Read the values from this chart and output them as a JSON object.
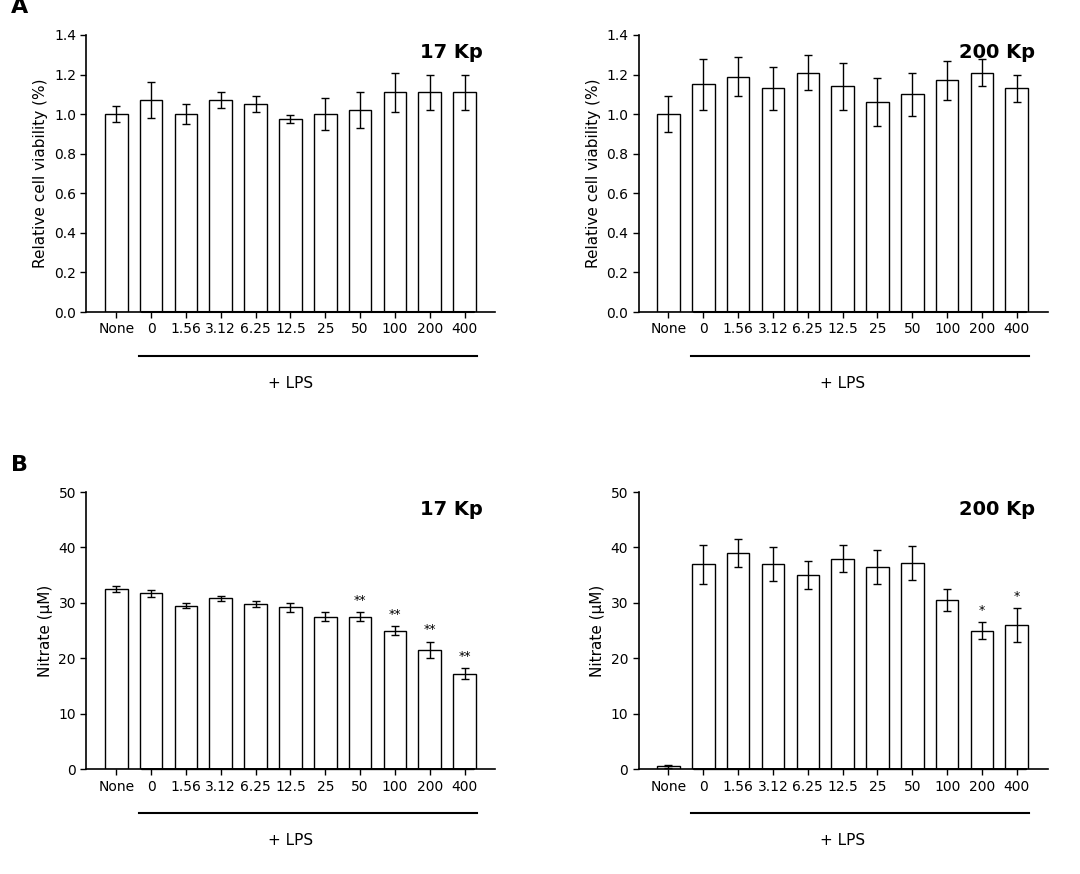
{
  "categories": [
    "None",
    "0",
    "1.56",
    "3.12",
    "6.25",
    "12.5",
    "25",
    "50",
    "100",
    "200",
    "400"
  ],
  "panel_A_17kp_values": [
    1.0,
    1.07,
    1.0,
    1.07,
    1.05,
    0.975,
    1.0,
    1.02,
    1.11,
    1.11,
    1.11
  ],
  "panel_A_17kp_errors": [
    0.04,
    0.09,
    0.05,
    0.04,
    0.04,
    0.02,
    0.08,
    0.09,
    0.1,
    0.09,
    0.09
  ],
  "panel_A_200kp_values": [
    1.0,
    1.15,
    1.19,
    1.13,
    1.21,
    1.14,
    1.06,
    1.1,
    1.17,
    1.21,
    1.13
  ],
  "panel_A_200kp_errors": [
    0.09,
    0.13,
    0.1,
    0.11,
    0.09,
    0.12,
    0.12,
    0.11,
    0.1,
    0.07,
    0.07
  ],
  "panel_B_17kp_values": [
    32.5,
    31.7,
    29.5,
    30.8,
    29.8,
    29.2,
    27.5,
    27.5,
    25.0,
    21.5,
    17.2
  ],
  "panel_B_17kp_errors": [
    0.5,
    0.7,
    0.5,
    0.5,
    0.5,
    0.8,
    0.8,
    0.8,
    0.8,
    1.5,
    1.0
  ],
  "panel_B_17kp_sig_labels": [
    "",
    "",
    "",
    "",
    "",
    "",
    "",
    "**",
    "**",
    "**",
    "**"
  ],
  "panel_B_200kp_values": [
    0.5,
    37.0,
    39.0,
    37.0,
    35.0,
    38.0,
    36.5,
    37.2,
    30.5,
    25.0,
    26.0
  ],
  "panel_B_200kp_errors": [
    0.3,
    3.5,
    2.5,
    3.0,
    2.5,
    2.5,
    3.0,
    3.0,
    2.0,
    1.5,
    3.0
  ],
  "panel_B_200kp_sig_labels": [
    "",
    "",
    "",
    "",
    "",
    "",
    "",
    "",
    "",
    "*",
    "*"
  ],
  "bar_facecolor": "white",
  "bar_edgecolor": "black",
  "bar_linewidth": 1.0,
  "error_capsize": 3,
  "error_color": "black",
  "error_linewidth": 1.0,
  "ylabel_A": "Relative cell viability (%)",
  "ylabel_B": "Nitrate (μM)",
  "xlabel_lps": "+ LPS",
  "ylim_A": [
    0,
    1.4
  ],
  "yticks_A": [
    0,
    0.2,
    0.4,
    0.6,
    0.8,
    1.0,
    1.2,
    1.4
  ],
  "ylim_B": [
    0,
    50
  ],
  "yticks_B": [
    0,
    10,
    20,
    30,
    40,
    50
  ],
  "label_17kp": "17 Kp",
  "label_200kp": "200 Kp",
  "label_A": "A",
  "label_B": "B",
  "sig_fontsize": 9,
  "axis_label_fontsize": 11,
  "tick_fontsize": 10,
  "panel_label_fontsize": 16,
  "title_fontsize": 14,
  "background_color": "white"
}
